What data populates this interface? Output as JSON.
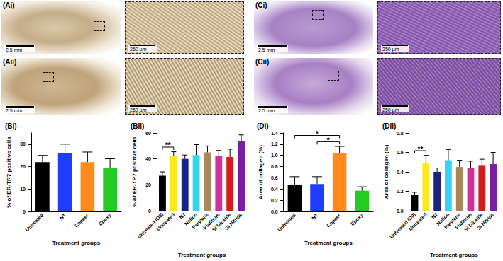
{
  "image_panels": [
    {
      "label": "(Ai)",
      "scale_bar": "2.5 mm",
      "zoom_scale_bar": "250 µm"
    },
    {
      "label": "(Aii)",
      "scale_bar": "2.5 mm",
      "zoom_scale_bar": "250 µm"
    },
    {
      "label": "(Ci)",
      "scale_bar": "2.5 mm",
      "zoom_scale_bar": "250 µm"
    },
    {
      "label": "(Cii)",
      "scale_bar": "2.5 mm",
      "zoom_scale_bar": "250 µm"
    }
  ],
  "chart_data": [
    {
      "type": "bar",
      "title": "(Bi)",
      "xlabel": "Treatment groups",
      "ylabel": "% of ER-TR7 positive cells",
      "categories": [
        "Untreated",
        "NT",
        "Copper",
        "Epoxy"
      ],
      "values": [
        22,
        26,
        22,
        19.5
      ],
      "errors": [
        3,
        4,
        4.5,
        4
      ],
      "colors": [
        "#000000",
        "#1f3cff",
        "#ff8c1a",
        "#22cc22"
      ],
      "ylim": [
        0,
        35
      ],
      "yticks": [
        0,
        10,
        20,
        30
      ],
      "grid": false,
      "annotations": []
    },
    {
      "type": "bar",
      "title": "(Bii)",
      "xlabel": "Treatment groups",
      "ylabel": "% of ER-TR7 positive cells",
      "categories": [
        "Untreated (D0)",
        "Untreated",
        "NT",
        "Nafion",
        "Parylene",
        "Platinum",
        "Si Dioxide",
        "Si Nitride"
      ],
      "values": [
        27,
        42.5,
        40,
        43,
        45,
        42.5,
        41.5,
        53.5
      ],
      "errors": [
        3,
        3,
        3,
        8,
        5,
        4,
        6,
        5
      ],
      "colors": [
        "#000000",
        "#ffe81a",
        "#1a237e",
        "#33d6f0",
        "#a8875a",
        "#cc3399",
        "#d7191c",
        "#7b1fa2"
      ],
      "ylim": [
        0,
        60
      ],
      "yticks": [
        0,
        20,
        40,
        60
      ],
      "grid": false,
      "annotations": [
        {
          "from": "Untreated (D0)",
          "to": "Untreated",
          "text": "**"
        }
      ]
    },
    {
      "type": "bar",
      "title": "(Di)",
      "xlabel": "Treatment groups",
      "ylabel": "Area of collagen (%)",
      "categories": [
        "Untreated",
        "NT",
        "Copper",
        "Epoxy"
      ],
      "values": [
        0.48,
        0.49,
        1.04,
        0.37
      ],
      "errors": [
        0.14,
        0.13,
        0.12,
        0.07
      ],
      "colors": [
        "#000000",
        "#1f3cff",
        "#ff8c1a",
        "#22cc22"
      ],
      "ylim": [
        0,
        1.4
      ],
      "yticks": [
        {
          "value": 0,
          "label": "0.0"
        },
        0.2,
        0.4,
        0.6,
        0.8,
        {
          "value": 1,
          "label": "1.0"
        },
        1.2,
        1.4
      ],
      "grid": false,
      "annotations": [
        {
          "from": "NT",
          "to": "Copper",
          "text": "*"
        },
        {
          "from": "Untreated",
          "to": "Copper",
          "text": "*"
        }
      ]
    },
    {
      "type": "bar",
      "title": "(Dii)",
      "xlabel": "Treatment groups",
      "ylabel": "Area of collagen (%)",
      "categories": [
        "Untreated (D0)",
        "Untreated",
        "NT",
        "Nafion",
        "Parylene",
        "Platinum",
        "Si Dioxide",
        "Si Nitride"
      ],
      "values": [
        0.16,
        0.49,
        0.4,
        0.52,
        0.45,
        0.44,
        0.47,
        0.48
      ],
      "errors": [
        0.03,
        0.08,
        0.04,
        0.11,
        0.07,
        0.07,
        0.06,
        0.12
      ],
      "colors": [
        "#000000",
        "#ffe81a",
        "#1a237e",
        "#33d6f0",
        "#a8875a",
        "#cc3399",
        "#d7191c",
        "#7b1fa2"
      ],
      "ylim": [
        0,
        0.8
      ],
      "yticks": [
        {
          "value": 0,
          "label": "0.0"
        },
        0.2,
        0.4,
        0.6,
        0.8
      ],
      "grid": false,
      "annotations": [
        {
          "from": "Untreated (D0)",
          "to": "Untreated",
          "text": "**"
        }
      ]
    }
  ]
}
